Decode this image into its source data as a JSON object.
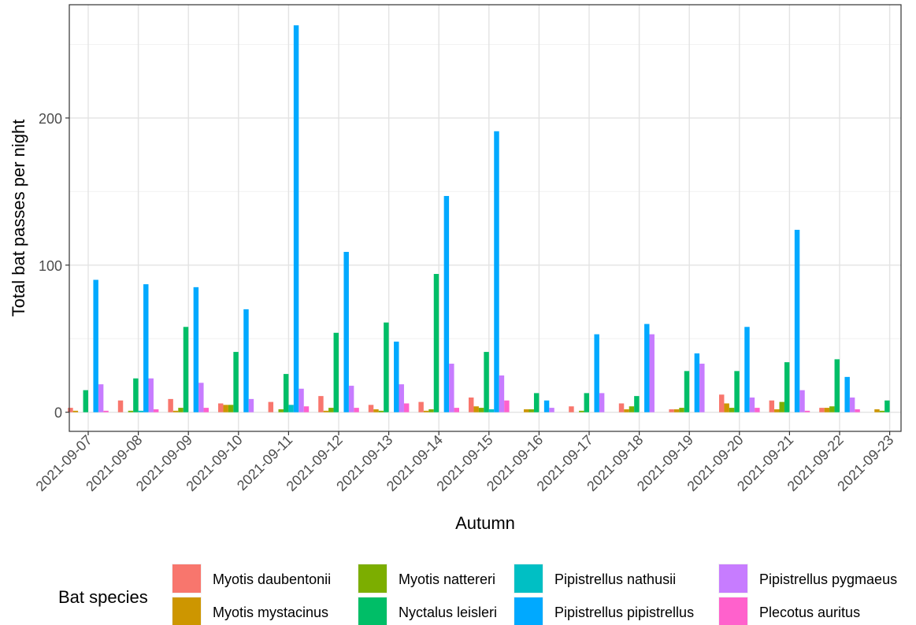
{
  "chart_data": {
    "type": "bar",
    "title": "",
    "xlabel": "Autumn",
    "ylabel": "Total bat passes per night",
    "ylim": [
      -13,
      277
    ],
    "yticks": [
      0,
      100,
      200
    ],
    "grid": true,
    "legend": {
      "title": "Bat species",
      "position": "bottom"
    },
    "categories": [
      "2021-09-07",
      "2021-09-08",
      "2021-09-09",
      "2021-09-10",
      "2021-09-11",
      "2021-09-12",
      "2021-09-13",
      "2021-09-14",
      "2021-09-15",
      "2021-09-16",
      "2021-09-17",
      "2021-09-18",
      "2021-09-19",
      "2021-09-20",
      "2021-09-21",
      "2021-09-22",
      "2021-09-23"
    ],
    "series": [
      {
        "name": "Myotis daubentonii",
        "color": "#F8766D",
        "values": [
          3,
          8,
          9,
          6,
          7,
          11,
          5,
          7,
          10,
          0,
          4,
          6,
          2,
          12,
          8,
          3,
          0
        ]
      },
      {
        "name": "Myotis mystacinus",
        "color": "#CD9600",
        "values": [
          1,
          0,
          1,
          5,
          0,
          1,
          2,
          1,
          4,
          2,
          0,
          2,
          2,
          6,
          2,
          3,
          2
        ]
      },
      {
        "name": "Myotis nattereri",
        "color": "#7CAE00",
        "values": [
          0,
          1,
          3,
          5,
          2,
          3,
          1,
          2,
          3,
          2,
          1,
          4,
          3,
          3,
          7,
          4,
          1
        ]
      },
      {
        "name": "Nyctalus leisleri",
        "color": "#00BE67",
        "values": [
          15,
          23,
          58,
          41,
          26,
          54,
          61,
          94,
          41,
          13,
          13,
          11,
          28,
          28,
          34,
          36,
          8
        ]
      },
      {
        "name": "Pipistrellus nathusii",
        "color": "#00BFC4",
        "values": [
          0,
          1,
          0,
          0,
          5,
          0,
          0,
          0,
          2,
          0,
          0,
          0,
          0,
          0,
          0,
          0,
          0
        ]
      },
      {
        "name": "Pipistrellus pipistrellus",
        "color": "#00A9FF",
        "values": [
          90,
          87,
          85,
          70,
          263,
          109,
          48,
          147,
          191,
          8,
          53,
          60,
          40,
          58,
          124,
          24,
          0
        ]
      },
      {
        "name": "Pipistrellus pygmaeus",
        "color": "#C77CFF",
        "values": [
          19,
          23,
          20,
          9,
          16,
          18,
          19,
          33,
          25,
          3,
          13,
          53,
          33,
          10,
          15,
          10,
          0
        ]
      },
      {
        "name": "Plecotus auritus",
        "color": "#FF61CC",
        "values": [
          1,
          2,
          3,
          0,
          4,
          3,
          6,
          3,
          8,
          0,
          0,
          0,
          0,
          3,
          1,
          2,
          0
        ]
      }
    ]
  }
}
